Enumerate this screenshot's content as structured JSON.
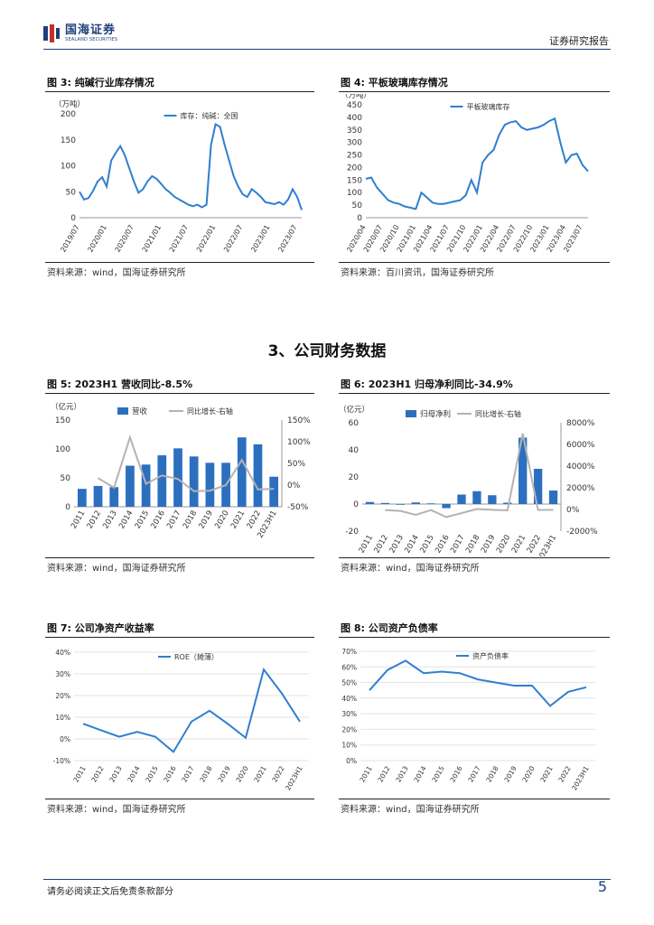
{
  "header": {
    "logo_cn": "国海证券",
    "logo_en": "SEALAND SECURITIES",
    "report_type": "证券研究报告"
  },
  "section_title": "3、公司财务数据",
  "figures": {
    "fig3": {
      "title": "图 3:  纯碱行业库存情况",
      "source": "资料来源：wind，国海证券研究所"
    },
    "fig4": {
      "title": "图 4:  平板玻璃库存情况",
      "source": "资料来源：百川资讯，国海证券研究所"
    },
    "fig5": {
      "title": "图 5:  2023H1 营收同比-8.5%",
      "source": "资料来源：wind，国海证券研究所"
    },
    "fig6": {
      "title": "图 6:  2023H1 归母净利同比-34.9%",
      "source": "资料来源：wind，国海证券研究所"
    },
    "fig7": {
      "title": "图 7:  公司净资产收益率",
      "source": "资料来源：wind，国海证券研究所"
    },
    "fig8": {
      "title": "图 8:  公司资产负债率",
      "source": "资料来源：wind，国海证券研究所"
    }
  },
  "footer": {
    "disclaimer": "请务必阅读正文后免责条款部分",
    "page": "5"
  },
  "colors": {
    "blue": "#2c6fbf",
    "line_blue": "#2f7fd0",
    "gray": "#b3b3b3",
    "brand": "#1f3f7a"
  },
  "chart_data": [
    {
      "id": "fig3",
      "type": "line",
      "unit_label": "（万吨）",
      "legend": "库存：纯碱：全国",
      "ylim": [
        0,
        200
      ],
      "yticks": [
        "0",
        "50",
        "100",
        "150",
        "200"
      ],
      "xticks": [
        "2019/07",
        "2020/01",
        "2020/07",
        "2021/01",
        "2021/07",
        "2022/01",
        "2022/07",
        "2023/01",
        "2023/07"
      ],
      "x": [
        "2019/07",
        "2019/08",
        "2019/09",
        "2019/10",
        "2019/11",
        "2019/12",
        "2020/01",
        "2020/02",
        "2020/03",
        "2020/04",
        "2020/05",
        "2020/06",
        "2020/07",
        "2020/08",
        "2020/09",
        "2020/10",
        "2020/11",
        "2020/12",
        "2021/01",
        "2021/02",
        "2021/03",
        "2021/04",
        "2021/05",
        "2021/06",
        "2021/07",
        "2021/08",
        "2021/09",
        "2021/10",
        "2021/11",
        "2021/12",
        "2022/01",
        "2022/02",
        "2022/03",
        "2022/04",
        "2022/05",
        "2022/06",
        "2022/07",
        "2022/08",
        "2022/09",
        "2022/10",
        "2022/11",
        "2022/12",
        "2023/01",
        "2023/02",
        "2023/03",
        "2023/04",
        "2023/05",
        "2023/06",
        "2023/07",
        "2023/08"
      ],
      "values": [
        50,
        35,
        38,
        52,
        70,
        78,
        60,
        110,
        125,
        138,
        120,
        95,
        70,
        48,
        55,
        70,
        80,
        75,
        65,
        55,
        48,
        40,
        35,
        30,
        25,
        22,
        25,
        20,
        25,
        140,
        180,
        175,
        140,
        110,
        80,
        60,
        45,
        40,
        55,
        48,
        40,
        30,
        28,
        26,
        30,
        25,
        35,
        55,
        40,
        15
      ]
    },
    {
      "id": "fig4",
      "type": "line",
      "unit_label": "（万吨）",
      "legend": "平板玻璃库存",
      "ylim": [
        0,
        450
      ],
      "yticks": [
        "0",
        "50",
        "100",
        "150",
        "200",
        "250",
        "300",
        "350",
        "400",
        "450"
      ],
      "xticks": [
        "2020/04",
        "2020/07",
        "2020/10",
        "2021/01",
        "2021/04",
        "2021/07",
        "2021/10",
        "2022/01",
        "2022/04",
        "2022/07",
        "2022/10",
        "2023/01",
        "2023/04",
        "2023/07"
      ],
      "x": [
        "2020/04",
        "2020/05",
        "2020/06",
        "2020/07",
        "2020/08",
        "2020/09",
        "2020/10",
        "2020/11",
        "2020/12",
        "2021/01",
        "2021/02",
        "2021/03",
        "2021/04",
        "2021/05",
        "2021/06",
        "2021/07",
        "2021/08",
        "2021/09",
        "2021/10",
        "2021/11",
        "2021/12",
        "2022/01",
        "2022/02",
        "2022/03",
        "2022/04",
        "2022/05",
        "2022/06",
        "2022/07",
        "2022/08",
        "2022/09",
        "2022/10",
        "2022/11",
        "2022/12",
        "2023/01",
        "2023/02",
        "2023/03",
        "2023/04",
        "2023/05",
        "2023/06",
        "2023/07",
        "2023/08"
      ],
      "values": [
        155,
        160,
        120,
        95,
        70,
        60,
        55,
        45,
        40,
        35,
        100,
        80,
        60,
        55,
        55,
        60,
        65,
        70,
        90,
        150,
        100,
        220,
        250,
        270,
        330,
        370,
        380,
        385,
        360,
        350,
        355,
        360,
        370,
        385,
        395,
        300,
        220,
        250,
        255,
        210,
        185
      ]
    },
    {
      "id": "fig5",
      "type": "bar+line",
      "unit_label": "（亿元）",
      "categories": [
        "2011",
        "2012",
        "2013",
        "2014",
        "2015",
        "2016",
        "2017",
        "2018",
        "2019",
        "2020",
        "2021",
        "2022",
        "2023H1"
      ],
      "ylim": [
        0,
        150
      ],
      "yticks": [
        "0",
        "50",
        "100",
        "150"
      ],
      "y2ticks": [
        "-50%",
        "0%",
        "50%",
        "100%",
        "150%"
      ],
      "y2lim": [
        -50,
        150
      ],
      "series": [
        {
          "name": "营收",
          "axis": "left",
          "values": [
            31,
            36,
            34,
            71,
            73,
            89,
            101,
            87,
            76,
            76,
            120,
            108,
            52
          ]
        },
        {
          "name": "同比增长-右轴",
          "axis": "right",
          "values": [
            null,
            16,
            -6,
            110,
            3,
            22,
            14,
            -14,
            -13,
            0,
            58,
            -10,
            -8.5
          ]
        }
      ]
    },
    {
      "id": "fig6",
      "type": "bar+line",
      "unit_label": "（亿元）",
      "categories": [
        "2011",
        "2012",
        "2013",
        "2014",
        "2015",
        "2016",
        "2017",
        "2018",
        "2019",
        "2020",
        "2021",
        "2022",
        "2023H1"
      ],
      "ylim": [
        -20,
        60
      ],
      "yticks": [
        "-20",
        "0",
        "20",
        "40",
        "60"
      ],
      "y2ticks": [
        "-2000%",
        "0%",
        "2000%",
        "4000%",
        "6000%",
        "8000%"
      ],
      "y2lim": [
        -2000,
        8000
      ],
      "series": [
        {
          "name": "归母净利",
          "axis": "left",
          "values": [
            1.5,
            0.8,
            -0.3,
            1.2,
            0.5,
            -3.0,
            7.0,
            9.5,
            6.5,
            1.0,
            49,
            26,
            10
          ]
        },
        {
          "name": "同比增长-右轴",
          "axis": "right",
          "values": [
            null,
            -50,
            -130,
            -500,
            -60,
            -700,
            -330,
            40,
            -30,
            -85,
            7000,
            -46,
            -35
          ]
        }
      ]
    },
    {
      "id": "fig7",
      "type": "line",
      "legend": "ROE（摊薄）",
      "categories": [
        "2011",
        "2012",
        "2013",
        "2014",
        "2015",
        "2016",
        "2017",
        "2018",
        "2019",
        "2020",
        "2021",
        "2022",
        "2023H1"
      ],
      "ylim": [
        -10,
        40
      ],
      "yticks": [
        "-10%",
        "0%",
        "10%",
        "20%",
        "30%",
        "40%"
      ],
      "values": [
        7,
        4,
        1,
        3.3,
        1,
        -6,
        8,
        13,
        7,
        0.5,
        32,
        21,
        8
      ]
    },
    {
      "id": "fig8",
      "type": "line",
      "legend": "资产负债率",
      "categories": [
        "2011",
        "2012",
        "2013",
        "2014",
        "2015",
        "2016",
        "2017",
        "2018",
        "2019",
        "2020",
        "2021",
        "2022",
        "2023H1"
      ],
      "ylim": [
        0,
        70
      ],
      "yticks": [
        "0%",
        "10%",
        "20%",
        "30%",
        "40%",
        "50%",
        "60%",
        "70%"
      ],
      "values": [
        45,
        58,
        64,
        56,
        57,
        56,
        52,
        50,
        48,
        48,
        35,
        44,
        47
      ]
    }
  ]
}
